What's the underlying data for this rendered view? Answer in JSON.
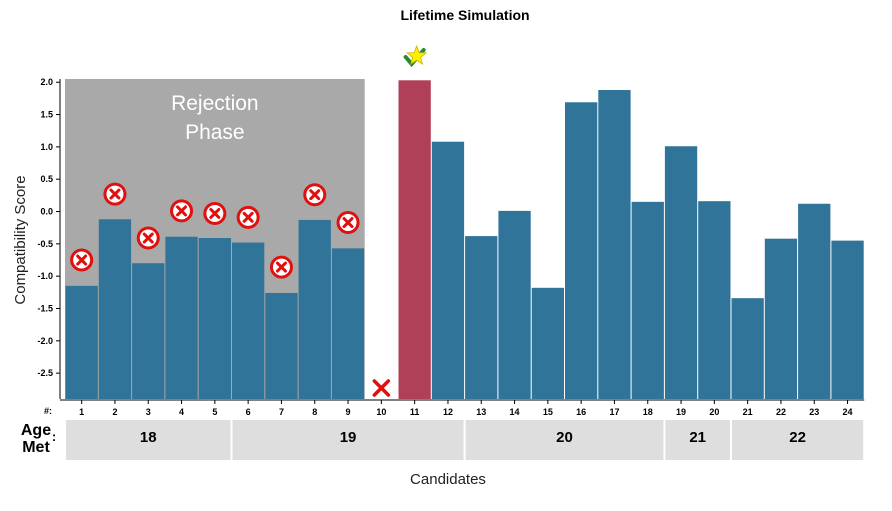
{
  "chart_data": {
    "type": "bar",
    "title": "Lifetime Simulation",
    "xlabel": "Candidates",
    "ylabel": "Compatibility Score",
    "ylim": [
      -2.9,
      2.05
    ],
    "yticks": [
      "2.0",
      "1.5",
      "1.0",
      "0.5",
      "0.0",
      "-0.5",
      "-1.0",
      "-1.5",
      "-2.0",
      "-2.5"
    ],
    "grid": false,
    "row_labels": {
      "number": "#:",
      "age_line1": "Age",
      "age_line2": "Met",
      "age_colon": ":"
    },
    "categories": [
      "1",
      "2",
      "3",
      "4",
      "5",
      "6",
      "7",
      "8",
      "9",
      "10",
      "11",
      "12",
      "13",
      "14",
      "15",
      "16",
      "17",
      "18",
      "19",
      "20",
      "21",
      "22",
      "23",
      "24"
    ],
    "values": [
      -1.15,
      -0.12,
      -0.8,
      -0.39,
      -0.41,
      -0.48,
      -1.26,
      -0.13,
      -0.57,
      null,
      2.03,
      1.08,
      -0.38,
      0.01,
      -1.18,
      1.69,
      1.88,
      0.15,
      1.01,
      0.16,
      -1.34,
      -0.42,
      0.12,
      -0.45
    ],
    "bar_color": "#31749a",
    "selected_bar_color": "#b04057",
    "selected_candidate": 11,
    "rejection_phase": {
      "label_line1": "Rejection",
      "label_line2": "Phase",
      "from": 1,
      "to": 9,
      "color": "#a9a9a9"
    },
    "rejected_marker_scores": [
      -0.75,
      0.27,
      -0.41,
      0.01,
      -0.03,
      -0.09,
      -0.86,
      0.26,
      -0.17
    ],
    "rejected_marker_color": "#e01010",
    "skipped_candidate": 10,
    "star_color": "#ffee00",
    "age_groups": [
      {
        "age": "18",
        "from": 1,
        "to": 5
      },
      {
        "age": "19",
        "from": 6,
        "to": 12
      },
      {
        "age": "20",
        "from": 13,
        "to": 18
      },
      {
        "age": "21",
        "from": 19,
        "to": 20
      },
      {
        "age": "22",
        "from": 21,
        "to": 24
      }
    ]
  }
}
